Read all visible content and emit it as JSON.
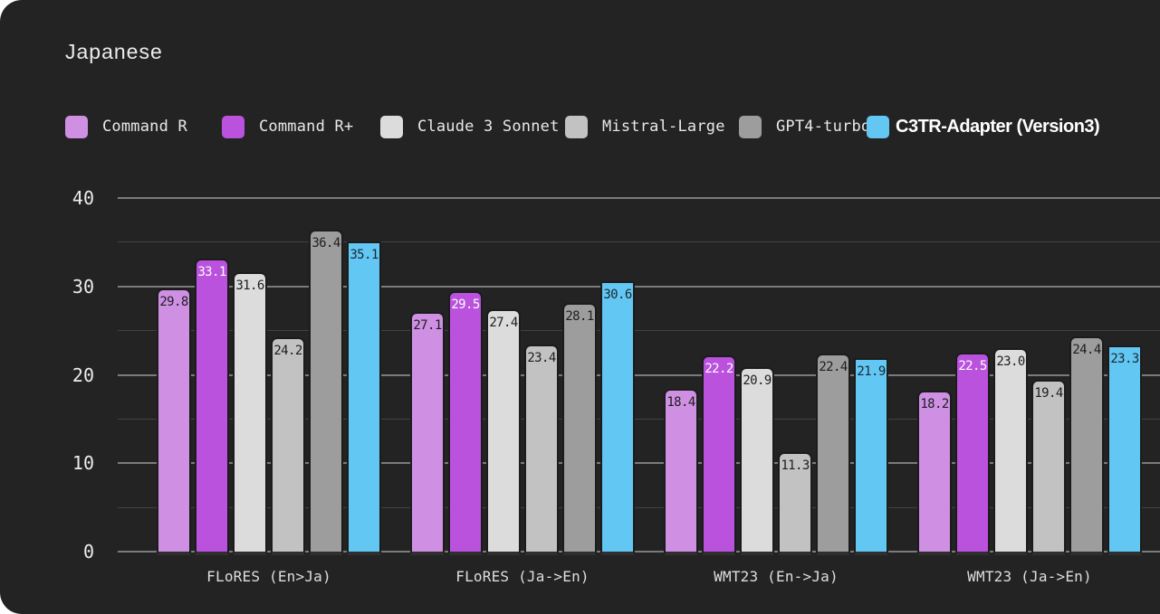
{
  "header": {
    "title": "Japanese"
  },
  "colors": {
    "canvas_background": "#232323",
    "major_gridline": "#7b7b7b",
    "minor_gridline": "#424242",
    "axis_text": "#ececec"
  },
  "chart_data": {
    "type": "bar",
    "title": "Japanese",
    "categories": [
      "FLoRES (En>Ja)",
      "FLoRES (Ja->En)",
      "WMT23 (En->Ja)",
      "WMT23 (Ja->En)"
    ],
    "series": [
      {
        "name": "Command R",
        "color": "#cf90e4",
        "label_color": "#1e1e1e",
        "emphasis": false,
        "values": [
          29.8,
          27.1,
          18.4,
          18.2
        ]
      },
      {
        "name": "Command R+",
        "color": "#ba52de",
        "label_color": "#fdfdfd",
        "emphasis": false,
        "values": [
          33.1,
          29.5,
          22.2,
          22.5
        ]
      },
      {
        "name": "Claude 3 Sonnet",
        "color": "#dcdcdc",
        "label_color": "#1e1e1e",
        "emphasis": false,
        "values": [
          31.6,
          27.4,
          20.9,
          23.0
        ]
      },
      {
        "name": "Mistral-Large",
        "color": "#c2c2c2",
        "label_color": "#1e1e1e",
        "emphasis": false,
        "values": [
          24.2,
          23.4,
          11.3,
          19.4
        ]
      },
      {
        "name": "GPT4-turbo",
        "color": "#9d9d9d",
        "label_color": "#1e1e1e",
        "emphasis": false,
        "values": [
          36.4,
          28.1,
          22.4,
          24.4
        ]
      },
      {
        "name": "C3TR-Adapter (Version3)",
        "color": "#63c7f3",
        "label_color": "#182832",
        "emphasis": true,
        "values": [
          35.1,
          30.6,
          21.9,
          23.3
        ]
      }
    ],
    "ylim": [
      0,
      40
    ],
    "yticks": [
      0,
      10,
      20,
      30,
      40
    ],
    "minor_grid_step": 5,
    "grid": true,
    "legend_position": "top",
    "value_labels": "inside-top",
    "value_label_decimals": 1
  }
}
